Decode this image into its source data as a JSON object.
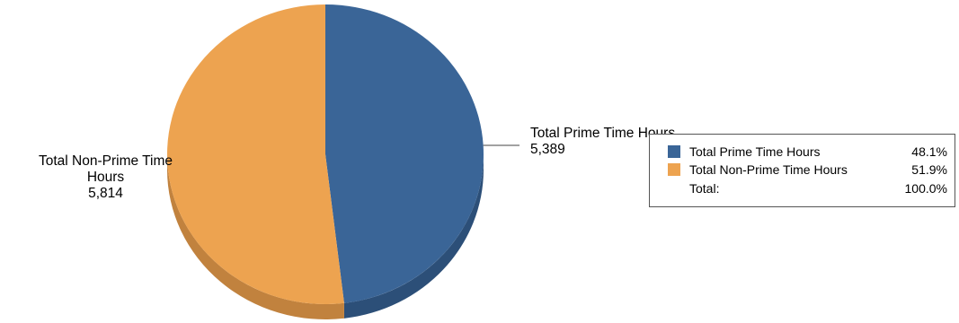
{
  "chart_data": {
    "type": "pie",
    "title": "",
    "slices": [
      {
        "label": "Total Prime Time Hours",
        "value": 5389,
        "value_text": "5,389",
        "percent": 48.1,
        "percent_text": "48.1%",
        "color": "#3a6597",
        "side_color": "#2c4f78"
      },
      {
        "label": "Total Non-Prime Time Hours",
        "value": 5814,
        "value_text": "5,814",
        "percent": 51.9,
        "percent_text": "51.9%",
        "color": "#eda350",
        "side_color": "#c1823e"
      }
    ],
    "callouts": {
      "prime": {
        "line1": "Total Prime Time Hours",
        "line2": "5,389"
      },
      "nonprime": {
        "line1": "Total Non-Prime Time",
        "line2": "Hours",
        "line3": "5,814"
      }
    },
    "legend": {
      "placement": "right",
      "total_label": "Total:",
      "total_percent": "100.0%"
    },
    "style": "3d"
  }
}
